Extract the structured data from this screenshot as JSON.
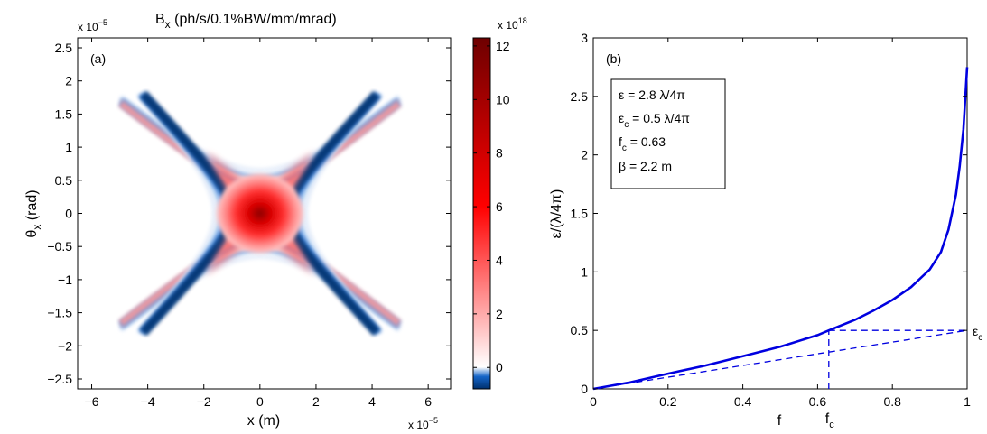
{
  "chart_data": [
    {
      "type": "heatmap",
      "panel_label": "(a)",
      "title": "B",
      "title_sub": "x",
      "title_rest": " (ph/s/0.1%BW/mm/mrad)",
      "xlabel": "x (m)",
      "ylabel_main": "θ",
      "ylabel_sub": "x",
      "ylabel_rest": " (rad)",
      "x_exponent_base": "x 10",
      "x_exponent": "−5",
      "y_exponent_base": "x 10",
      "y_exponent": "−5",
      "xlim": [
        -6.5,
        6.8
      ],
      "ylim": [
        -2.65,
        2.65
      ],
      "xticks": [
        -6,
        -4,
        -2,
        0,
        2,
        4,
        6
      ],
      "xtick_labels": [
        "−6",
        "−4",
        "−2",
        "0",
        "2",
        "4",
        "6"
      ],
      "yticks": [
        2.5,
        2,
        1.5,
        1,
        0.5,
        0,
        -0.5,
        -1,
        -1.5,
        -2,
        -2.5
      ],
      "ytick_labels": [
        "2.5",
        "2",
        "1.5",
        "1",
        "0.5",
        "0",
        "−0.5",
        "−1",
        "−1.5",
        "−2",
        "−2.5"
      ],
      "colorbar": {
        "exponent_base": "x 10",
        "exponent": "18",
        "range": [
          -0.8,
          12.3
        ],
        "ticks": [
          12,
          10,
          8,
          6,
          4,
          2,
          0
        ],
        "tick_labels": [
          "12",
          "10",
          "8",
          "6",
          "4",
          "2",
          "0"
        ],
        "colormap": "blue-white-red",
        "colors": {
          "min": "#00306e",
          "zero": "#ffffff",
          "mid": "#ff0000",
          "max": "#6e0000"
        }
      },
      "peak_value": 12.3,
      "min_value": -0.8,
      "grid": false
    },
    {
      "type": "line",
      "panel_label": "(b)",
      "xlabel": "f",
      "ylabel": "ε/(λ/4π)",
      "xlim": [
        0,
        1
      ],
      "ylim": [
        0,
        3
      ],
      "xticks": [
        0,
        0.2,
        0.4,
        0.6,
        0.8,
        1
      ],
      "xtick_labels": [
        "0",
        "0.2",
        "0.4",
        "0.6",
        "0.8",
        "1"
      ],
      "yticks": [
        0,
        0.5,
        1,
        1.5,
        2,
        2.5,
        3
      ],
      "ytick_labels": [
        "0",
        "0.5",
        "1",
        "1.5",
        "2",
        "2.5",
        "3"
      ],
      "series": [
        {
          "style": "solid",
          "color": "#0000e0",
          "x": [
            0,
            0.1,
            0.2,
            0.3,
            0.4,
            0.5,
            0.6,
            0.63,
            0.7,
            0.75,
            0.8,
            0.85,
            0.9,
            0.93,
            0.95,
            0.97,
            0.98,
            0.99,
            1.0
          ],
          "y": [
            0,
            0.057,
            0.13,
            0.2,
            0.28,
            0.36,
            0.46,
            0.5,
            0.59,
            0.67,
            0.76,
            0.87,
            1.02,
            1.17,
            1.36,
            1.66,
            1.9,
            2.22,
            2.75
          ]
        },
        {
          "style": "dashed",
          "color": "#0000e0",
          "x": [
            0,
            1
          ],
          "y": [
            0,
            0.5
          ]
        },
        {
          "style": "dashed",
          "color": "#0000e0",
          "x": [
            0.63,
            1
          ],
          "y": [
            0.5,
            0.5
          ]
        },
        {
          "style": "dashed",
          "color": "#0000e0",
          "x": [
            0.63,
            0.63
          ],
          "y": [
            0,
            0.5
          ]
        }
      ],
      "annotations": {
        "eps_c_main": "ε",
        "eps_c_sub": "c",
        "eps_c_y": 0.5,
        "f_c_main": "f",
        "f_c_sub": "c",
        "f_c_x": 0.63
      },
      "legend_box": {
        "placement": "top-left",
        "lines": [
          {
            "main": "ε = 2.8 λ/4π",
            "sub": "",
            "rest": ""
          },
          {
            "main": "ε",
            "sub": "c",
            "rest": " = 0.5 λ/4π"
          },
          {
            "main": "f",
            "sub": "c",
            "rest": " = 0.63"
          },
          {
            "main": "β = 2.2 m",
            "sub": "",
            "rest": ""
          }
        ]
      },
      "grid": false
    }
  ]
}
